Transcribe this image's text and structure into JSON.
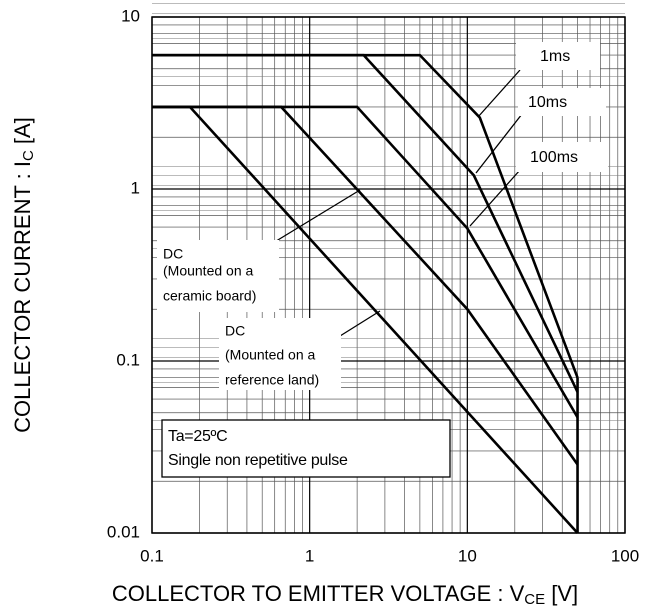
{
  "chart_data": {
    "type": "line",
    "x_label": {
      "text": "COLLECTOR TO EMITTER VOLTAGE : V",
      "sub": "CE",
      "tail": " [V]"
    },
    "y_label": {
      "text": "COLLECTOR CURRENT : I",
      "sub": "C",
      "tail": " [A]"
    },
    "log_x": true,
    "log_y": true,
    "grid": true,
    "xlim": [
      0.1,
      100
    ],
    "ylim": [
      0.01,
      10
    ],
    "xticks": [
      0.1,
      1,
      10,
      100
    ],
    "yticks": [
      0.01,
      0.1,
      1,
      10
    ],
    "series": [
      {
        "name": "1ms",
        "color": "#000000",
        "x": [
          0.1,
          5,
          12,
          50
        ],
        "values": [
          6,
          6,
          2.6,
          0.08
        ]
      },
      {
        "name": "10ms",
        "color": "#000000",
        "x": [
          0.1,
          2.2,
          11,
          50
        ],
        "values": [
          6,
          6,
          1.2,
          0.066
        ]
      },
      {
        "name": "100ms",
        "color": "#000000",
        "x": [
          0.1,
          2,
          10,
          50
        ],
        "values": [
          3,
          3,
          0.59,
          0.047
        ]
      },
      {
        "name": "DC (Mounted on a ceramic board)",
        "color": "#000000",
        "x": [
          0.1,
          0.66,
          10,
          50
        ],
        "values": [
          3,
          3,
          0.2,
          0.025
        ]
      },
      {
        "name": "DC (Mounted on a reference land)",
        "color": "#000000",
        "x": [
          0.1,
          0.174,
          50
        ],
        "values": [
          3,
          3,
          0.01
        ]
      }
    ],
    "annotations": [
      {
        "lines": [
          "1ms"
        ]
      },
      {
        "lines": [
          "10ms"
        ]
      },
      {
        "lines": [
          "100ms"
        ]
      },
      {
        "lines": [
          "DC",
          "(Mounted on a",
          "ceramic board)"
        ]
      },
      {
        "lines": [
          "DC",
          "(Mounted on a",
          "reference land)"
        ]
      },
      {
        "lines": [
          "Ta=25ºC",
          "Single non repetitive pulse"
        ]
      }
    ]
  }
}
